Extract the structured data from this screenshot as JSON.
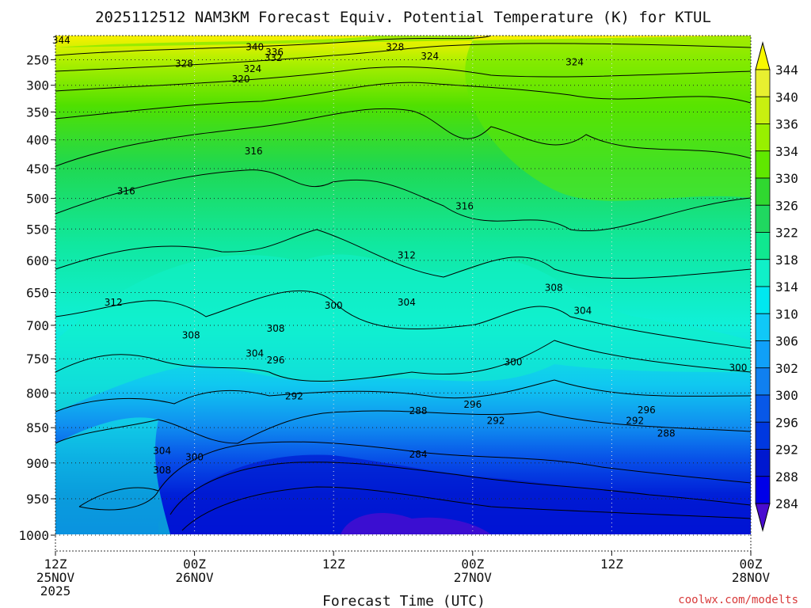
{
  "chart_data": {
    "type": "heatmap",
    "title": "2025112512 NAM3KM Forecast Equiv. Potential Temperature (K) for KTUL",
    "xlabel": "Forecast Time (UTC)",
    "ylabel": "",
    "x_ticks": [
      {
        "hour": 0,
        "lines": [
          "12Z",
          "25NOV",
          "2025"
        ]
      },
      {
        "hour": 12,
        "lines": [
          "00Z",
          "26NOV"
        ]
      },
      {
        "hour": 24,
        "lines": [
          "12Z"
        ]
      },
      {
        "hour": 36,
        "lines": [
          "00Z",
          "27NOV"
        ]
      },
      {
        "hour": 48,
        "lines": [
          "12Z"
        ]
      },
      {
        "hour": 60,
        "lines": [
          "00Z",
          "28NOV"
        ]
      }
    ],
    "xlim": [
      0,
      60
    ],
    "y_ticks": [
      "250",
      "300",
      "350",
      "400",
      "450",
      "500",
      "550",
      "600",
      "650",
      "700",
      "750",
      "800",
      "850",
      "900",
      "950",
      "1000"
    ],
    "ylim_hpa": [
      200,
      1000
    ],
    "colorbar": {
      "levels": [
        "344",
        "340",
        "336",
        "334",
        "330",
        "326",
        "322",
        "318",
        "314",
        "310",
        "306",
        "302",
        "300",
        "296",
        "292",
        "288",
        "284"
      ],
      "colors": [
        "#f8f800",
        "#e8f030",
        "#c8f010",
        "#98f000",
        "#60e800",
        "#30d830",
        "#20d860",
        "#10e890",
        "#10f0c8",
        "#00e8f0",
        "#10c8f8",
        "#10a0f8",
        "#1080f0",
        "#0858e8",
        "#0038e0",
        "#0018d0",
        "#0000e8",
        "#4a0cd0"
      ]
    },
    "contour_labels": [
      {
        "text": "344",
        "hour": 0.5,
        "hpa": 210
      },
      {
        "text": "340",
        "hour": 17.2,
        "hpa": 224
      },
      {
        "text": "336",
        "hour": 18.9,
        "hpa": 235
      },
      {
        "text": "332",
        "hour": 18.8,
        "hpa": 246
      },
      {
        "text": "328",
        "hour": 29.3,
        "hpa": 224
      },
      {
        "text": "324",
        "hour": 32.3,
        "hpa": 243
      },
      {
        "text": "328",
        "hour": 11.1,
        "hpa": 258
      },
      {
        "text": "324",
        "hour": 17.0,
        "hpa": 268
      },
      {
        "text": "324",
        "hour": 44.8,
        "hpa": 255
      },
      {
        "text": "320",
        "hour": 16.0,
        "hpa": 288
      },
      {
        "text": "316",
        "hour": 17.1,
        "hpa": 420
      },
      {
        "text": "316",
        "hour": 6.1,
        "hpa": 488
      },
      {
        "text": "316",
        "hour": 35.3,
        "hpa": 513
      },
      {
        "text": "312",
        "hour": 30.3,
        "hpa": 592
      },
      {
        "text": "312",
        "hour": 5.0,
        "hpa": 665
      },
      {
        "text": "308",
        "hour": 43.0,
        "hpa": 643
      },
      {
        "text": "304",
        "hour": 30.3,
        "hpa": 665
      },
      {
        "text": "304",
        "hour": 45.5,
        "hpa": 678
      },
      {
        "text": "300",
        "hour": 24.0,
        "hpa": 670
      },
      {
        "text": "308",
        "hour": 19.0,
        "hpa": 705
      },
      {
        "text": "308",
        "hour": 11.7,
        "hpa": 715
      },
      {
        "text": "304",
        "hour": 17.2,
        "hpa": 742
      },
      {
        "text": "296",
        "hour": 19.0,
        "hpa": 752
      },
      {
        "text": "300",
        "hour": 39.5,
        "hpa": 755
      },
      {
        "text": "300",
        "hour": 58.9,
        "hpa": 763
      },
      {
        "text": "292",
        "hour": 20.6,
        "hpa": 805
      },
      {
        "text": "296",
        "hour": 36.0,
        "hpa": 817
      },
      {
        "text": "288",
        "hour": 31.3,
        "hpa": 826
      },
      {
        "text": "292",
        "hour": 38.0,
        "hpa": 840
      },
      {
        "text": "292",
        "hour": 50.0,
        "hpa": 840
      },
      {
        "text": "296",
        "hour": 51.0,
        "hpa": 825
      },
      {
        "text": "288",
        "hour": 52.7,
        "hpa": 858
      },
      {
        "text": "284",
        "hour": 31.3,
        "hpa": 888
      },
      {
        "text": "304",
        "hour": 9.2,
        "hpa": 883
      },
      {
        "text": "300",
        "hour": 12.0,
        "hpa": 892
      },
      {
        "text": "308",
        "hour": 9.2,
        "hpa": 910
      }
    ]
  },
  "credit": "coolwx.com/modelts"
}
